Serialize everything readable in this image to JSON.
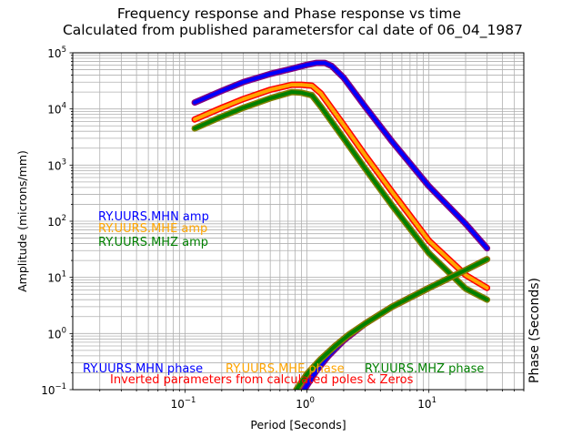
{
  "chart_data": {
    "type": "line",
    "title": "Frequency response and Phase response vs time",
    "subtitle": "Calculated from published parametersfor cal date of 06_04_1987",
    "xlabel": "Period [Seconds]",
    "ylabel": "Amplitude (microns/mm)",
    "ylabel_right": "Phase (Seconds)",
    "x_scale": "log",
    "y_scale": "log",
    "xlim": [
      0.012,
      60
    ],
    "ylim": [
      0.1,
      100000
    ],
    "grid": true,
    "x_ticks": [
      {
        "base": "10",
        "exp": "−1",
        "value": 0.1
      },
      {
        "base": "10",
        "exp": "0",
        "value": 1
      },
      {
        "base": "10",
        "exp": "1",
        "value": 10
      }
    ],
    "y_ticks": [
      {
        "base": "10",
        "exp": "−1",
        "value": 0.1
      },
      {
        "base": "10",
        "exp": "0",
        "value": 1
      },
      {
        "base": "10",
        "exp": "1",
        "value": 10
      },
      {
        "base": "10",
        "exp": "2",
        "value": 100
      },
      {
        "base": "10",
        "exp": "3",
        "value": 1000
      },
      {
        "base": "10",
        "exp": "4",
        "value": 10000
      },
      {
        "base": "10",
        "exp": "5",
        "value": 100000
      }
    ],
    "series": [
      {
        "name": "RY.UURS.MHN amp",
        "color": "#0000ff",
        "outline": "#800080",
        "x": [
          0.12,
          0.2,
          0.3,
          0.5,
          0.75,
          1.0,
          1.2,
          1.4,
          1.6,
          2.0,
          3.0,
          5.0,
          10.0,
          20.0,
          30.0
        ],
        "y": [
          13000,
          21000,
          30000,
          42000,
          52000,
          61000,
          66000,
          66000,
          58000,
          36000,
          11000,
          2600,
          420,
          90,
          33
        ]
      },
      {
        "name": "RY.UURS.MHE amp",
        "color": "#ffa500",
        "outline": "#ff0000",
        "x": [
          0.12,
          0.2,
          0.3,
          0.5,
          0.75,
          0.9,
          1.1,
          1.3,
          2.0,
          3.0,
          5.0,
          10.0,
          20.0,
          30.0
        ],
        "y": [
          6500,
          10500,
          15000,
          22000,
          27000,
          27000,
          26000,
          19000,
          5200,
          1500,
          330,
          45,
          11,
          6.5
        ]
      },
      {
        "name": "RY.UURS.MHZ amp",
        "color": "#008000",
        "outline": "#808000",
        "x": [
          0.12,
          0.2,
          0.3,
          0.5,
          0.75,
          0.9,
          1.1,
          1.3,
          2.0,
          3.0,
          5.0,
          10.0,
          20.0,
          30.0
        ],
        "y": [
          4500,
          7300,
          10500,
          15500,
          20000,
          19500,
          17500,
          11000,
          3000,
          870,
          190,
          27,
          6.3,
          4
        ]
      },
      {
        "name": "RY.UURS.MHN phase",
        "color": "#0000ff",
        "outline": "#800080",
        "x": [
          0.95,
          1.2,
          1.5,
          2.0,
          3.0,
          5.0,
          10.0,
          20.0,
          30.0
        ],
        "y": [
          0.1,
          0.22,
          0.4,
          0.75,
          1.5,
          3.0,
          6.5,
          13.5,
          21
        ]
      },
      {
        "name": "RY.UURS.MHE phase",
        "color": "#ffa500",
        "outline": "#ff0000",
        "x": [
          0.82,
          1.0,
          1.3,
          1.7,
          2.2,
          3.0,
          5.0,
          10.0,
          20.0,
          30.0
        ],
        "y": [
          0.1,
          0.19,
          0.35,
          0.6,
          0.95,
          1.5,
          3.0,
          6.5,
          13.5,
          21
        ]
      },
      {
        "name": "RY.UURS.MHZ phase",
        "color": "#008000",
        "outline": "#808000",
        "x": [
          0.82,
          1.0,
          1.3,
          1.7,
          2.2,
          3.0,
          5.0,
          10.0,
          20.0,
          30.0
        ],
        "y": [
          0.1,
          0.19,
          0.35,
          0.6,
          0.95,
          1.5,
          3.0,
          6.5,
          13.5,
          21
        ]
      }
    ],
    "amp_legend": [
      {
        "label": "RY.UURS.MHN amp",
        "color": "#0000ff"
      },
      {
        "label": "RY.UURS.MHE amp",
        "color": "#ffa500"
      },
      {
        "label": "RY.UURS.MHZ amp",
        "color": "#008000"
      }
    ],
    "phase_legend": [
      {
        "label": "RY.UURS.MHN phase",
        "color": "#0000ff"
      },
      {
        "label": "RY.UURS.MHE phase",
        "color": "#ffa500"
      },
      {
        "label": "RY.UURS.MHZ phase",
        "color": "#008000"
      }
    ],
    "note": {
      "label": "Inverted parameters from calculated poles & Zeros",
      "color": "#ff0000"
    }
  }
}
